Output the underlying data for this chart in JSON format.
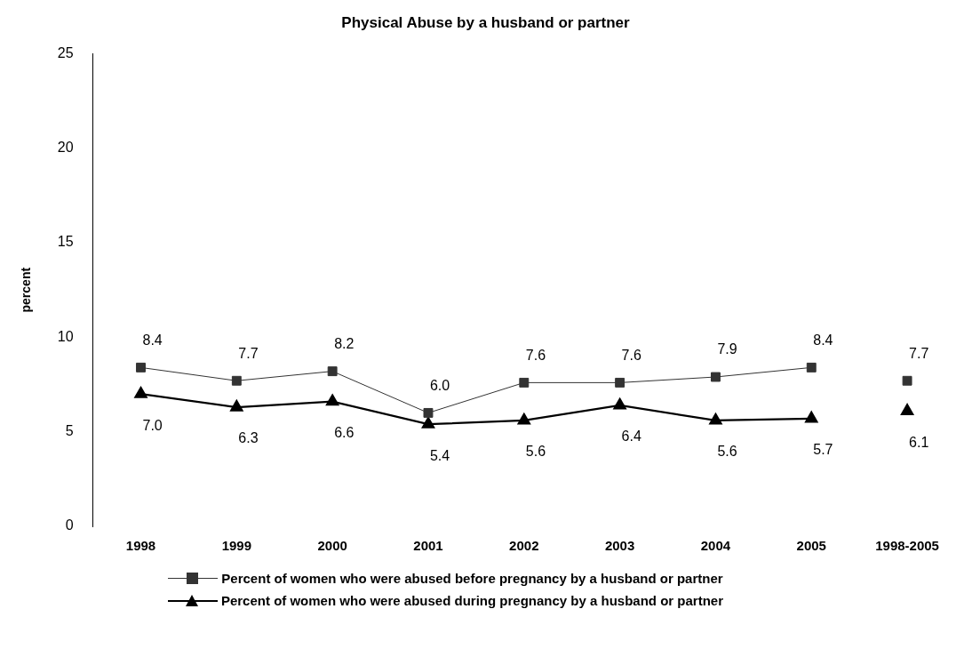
{
  "chart_data": {
    "type": "line",
    "title": "Physical Abuse by a husband or partner",
    "ylabel": "percent",
    "categories": [
      "1998",
      "1999",
      "2000",
      "2001",
      "2002",
      "2003",
      "2004",
      "2005",
      "1998-2005"
    ],
    "ylim": [
      0,
      25
    ],
    "yticks": [
      0,
      5,
      10,
      15,
      20,
      25
    ],
    "grid": false,
    "legend": "bottom",
    "data_labels": true,
    "series": [
      {
        "name": "Percent of women who were abused before pregnancy by a husband or partner",
        "color": "#333333",
        "marker": "square",
        "values": [
          8.4,
          7.7,
          8.2,
          6.0,
          7.6,
          7.6,
          7.9,
          8.4,
          null
        ],
        "value_labels": [
          "8.4",
          "7.7",
          "8.2",
          "6.0",
          "7.6",
          "7.6",
          "7.9",
          "8.4",
          null
        ]
      },
      {
        "name": "Percent of women who were abused during pregnancy by a husband or partner",
        "color": "#000000",
        "marker": "triangle",
        "values": [
          7.0,
          6.3,
          6.6,
          5.4,
          5.6,
          6.4,
          5.6,
          5.7,
          null
        ],
        "value_labels": [
          "7.0",
          "6.3",
          "6.6",
          "5.4",
          "5.6",
          "6.4",
          "5.6",
          "5.7",
          null
        ]
      },
      {
        "type": "scatter",
        "color": "#333333",
        "marker": "square",
        "x": [
          "1998-2005"
        ],
        "values": [
          7.7
        ],
        "value_labels": [
          "7.7"
        ]
      },
      {
        "type": "scatter",
        "color": "#000000",
        "marker": "triangle",
        "x": [
          "1998-2005"
        ],
        "values": [
          6.1
        ],
        "value_labels": [
          "6.1"
        ]
      }
    ]
  }
}
